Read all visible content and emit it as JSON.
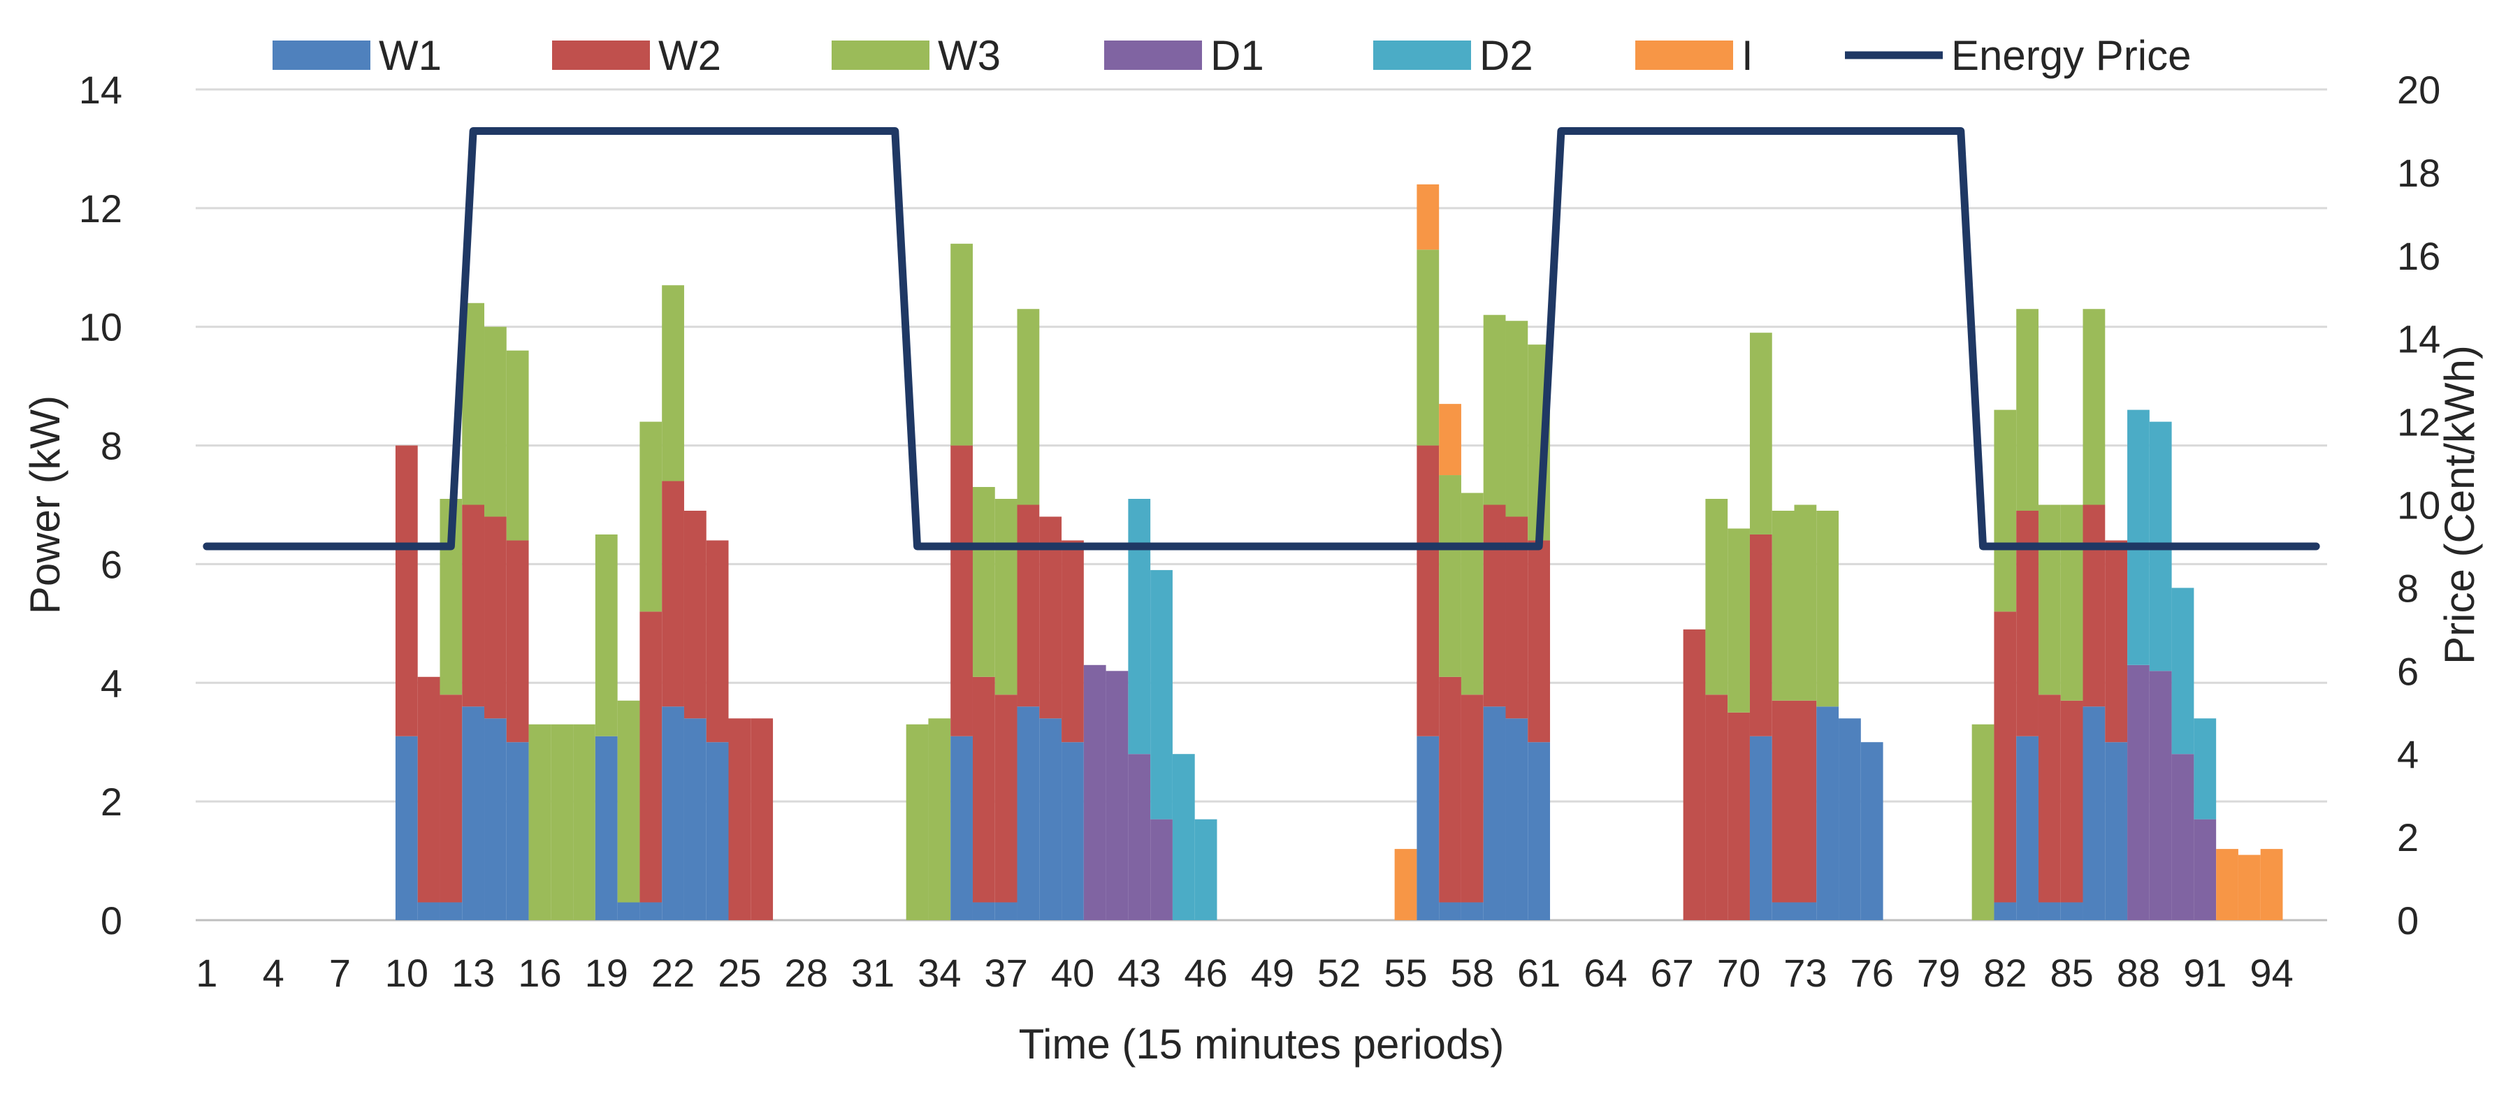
{
  "chart_data": {
    "type": "bar",
    "stacked": true,
    "title": "",
    "xlabel": "Time (15 minutes periods)",
    "ylabel": "Power (kW)",
    "y2label": "Price (Cent/kWh)",
    "ylim": [
      0,
      14
    ],
    "y2lim": [
      0,
      20
    ],
    "grid": true,
    "legend_position": "top",
    "x_ticks": [
      1,
      4,
      7,
      10,
      13,
      16,
      19,
      22,
      25,
      28,
      31,
      34,
      37,
      40,
      43,
      46,
      49,
      52,
      55,
      58,
      61,
      64,
      67,
      70,
      73,
      76,
      79,
      82,
      85,
      88,
      91,
      94
    ],
    "y_ticks": [
      0,
      2,
      4,
      6,
      8,
      10,
      12,
      14
    ],
    "y2_ticks": [
      0,
      2,
      4,
      6,
      8,
      10,
      12,
      14,
      16,
      18,
      20
    ],
    "series": [
      {
        "name": "W1",
        "color": "#4F81BD",
        "values": {
          "10": 3.1,
          "11": 0.3,
          "12": 0.3,
          "13": 3.6,
          "14": 3.4,
          "15": 3.0,
          "19": 3.1,
          "20": 0.3,
          "21": 0.3,
          "22": 3.6,
          "23": 3.4,
          "24": 3.0,
          "35": 3.1,
          "36": 0.3,
          "37": 0.3,
          "38": 3.6,
          "39": 3.4,
          "40": 3.0,
          "56": 3.1,
          "57": 0.3,
          "58": 0.3,
          "59": 3.6,
          "60": 3.4,
          "61": 3.0,
          "71": 3.1,
          "72": 0.3,
          "73": 0.3,
          "74": 3.6,
          "75": 3.4,
          "76": 3.0,
          "82": 0.3,
          "83": 3.1,
          "84": 0.3,
          "85": 0.3,
          "86": 3.6,
          "87": 3.0
        }
      },
      {
        "name": "W2",
        "color": "#C0504D",
        "values": {
          "10": 4.9,
          "11": 3.8,
          "12": 3.5,
          "13": 3.4,
          "14": 3.4,
          "15": 3.4,
          "21": 4.9,
          "22": 3.8,
          "23": 3.5,
          "24": 3.4,
          "25": 3.4,
          "26": 3.4,
          "35": 4.9,
          "36": 3.8,
          "37": 3.5,
          "38": 3.4,
          "39": 3.4,
          "40": 3.4,
          "56": 4.9,
          "57": 3.8,
          "58": 3.5,
          "59": 3.4,
          "60": 3.4,
          "61": 3.4,
          "68": 4.9,
          "69": 3.8,
          "70": 3.5,
          "71": 3.4,
          "72": 3.4,
          "73": 3.4,
          "82": 4.9,
          "83": 3.8,
          "84": 3.5,
          "85": 3.4,
          "86": 3.4,
          "87": 3.4
        }
      },
      {
        "name": "W3",
        "color": "#9BBB59",
        "values": {
          "12": 3.3,
          "13": 3.4,
          "14": 3.2,
          "15": 3.2,
          "16": 3.3,
          "17": 3.3,
          "18": 3.3,
          "19": 3.4,
          "20": 3.4,
          "21": 3.2,
          "22": 3.3,
          "33": 3.3,
          "34": 3.4,
          "35": 3.4,
          "36": 3.2,
          "37": 3.3,
          "38": 3.3,
          "56": 3.3,
          "57": 3.4,
          "58": 3.4,
          "59": 3.2,
          "60": 3.3,
          "61": 3.3,
          "69": 3.3,
          "70": 3.1,
          "71": 3.4,
          "72": 3.2,
          "73": 3.3,
          "74": 3.3,
          "81": 3.3,
          "82": 3.4,
          "83": 3.4,
          "84": 3.2,
          "85": 3.3,
          "86": 3.3
        }
      },
      {
        "name": "D1",
        "color": "#8064A2",
        "values": {
          "41": 4.3,
          "42": 4.2,
          "43": 2.8,
          "44": 1.7,
          "88": 4.3,
          "89": 4.2,
          "90": 2.8,
          "91": 1.7
        }
      },
      {
        "name": "D2",
        "color": "#4BACC6",
        "values": {
          "43": 4.3,
          "44": 4.2,
          "45": 2.8,
          "46": 1.7,
          "88": 4.3,
          "89": 4.2,
          "90": 2.8,
          "91": 1.7
        }
      },
      {
        "name": "I",
        "color": "#F79646",
        "values": {
          "55": 1.2,
          "56": 1.1,
          "57": 1.2,
          "92": 1.2,
          "93": 1.1,
          "94": 1.2
        }
      }
    ],
    "line_series": {
      "name": "Energy Price",
      "color": "#1F3864",
      "axis": "right",
      "points": [
        [
          1,
          9
        ],
        [
          12,
          9
        ],
        [
          13,
          19
        ],
        [
          32,
          19
        ],
        [
          33,
          9
        ],
        [
          61,
          9
        ],
        [
          62,
          19
        ],
        [
          80,
          19
        ],
        [
          81,
          9
        ],
        [
          96,
          9
        ]
      ]
    }
  }
}
